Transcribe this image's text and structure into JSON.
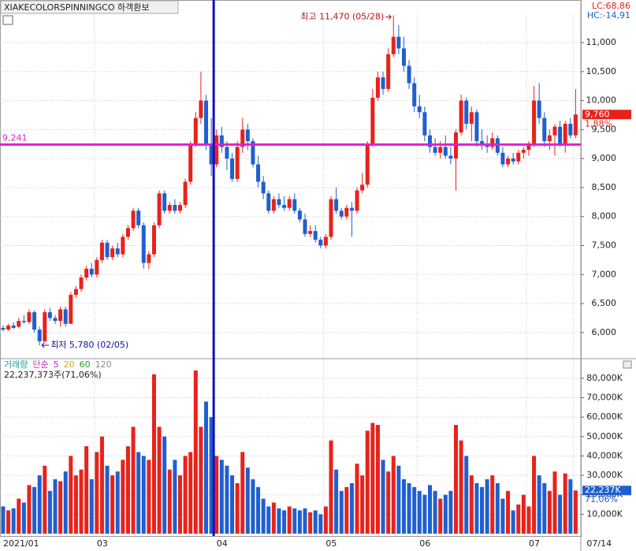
{
  "chart_data": {
    "type": "candlestick",
    "title": "XIAKECOLORSPINNINGCO 하객환보",
    "lc_label": "LC:68,86",
    "hc_label": "HC:-14,91",
    "color_up": "#e8221b",
    "color_down": "#1f5fd0",
    "xlim": [
      -0.6,
      111
    ],
    "xticks": [
      {
        "value": 0,
        "label": "2021/01"
      },
      {
        "value": 18,
        "label": "03"
      },
      {
        "value": 41,
        "label": "04"
      },
      {
        "value": 62,
        "label": "05"
      },
      {
        "value": 80,
        "label": "06"
      },
      {
        "value": 101,
        "label": "07"
      },
      {
        "value": 110,
        "label": "07/14"
      }
    ],
    "ylim": [
      5590,
      11490
    ],
    "yticks": [
      {
        "value": 6000,
        "label": "6,000"
      },
      {
        "value": 6500,
        "label": "6,500"
      },
      {
        "value": 7000,
        "label": "7,000"
      },
      {
        "value": 7500,
        "label": "7,500"
      },
      {
        "value": 8000,
        "label": "8,000"
      },
      {
        "value": 8500,
        "label": "8,500"
      },
      {
        "value": 9000,
        "label": "9,000"
      },
      {
        "value": 9500,
        "label": "9,500"
      },
      {
        "value": 10000,
        "label": "10,000"
      },
      {
        "value": 10500,
        "label": "10,500"
      },
      {
        "value": 11000,
        "label": "11,000"
      }
    ],
    "reference_line": {
      "value": 9241,
      "label": "9,241",
      "color": "#e020d0"
    },
    "cursor_index": 40,
    "high_annotation": "최고 11,470 (05/28)",
    "low_annotation": "최저 5,780 (02/05)",
    "last_price_label": "9,760",
    "change_label": "1,88%",
    "candles": [
      [
        6080,
        6120,
        6020,
        6050
      ],
      [
        6050,
        6150,
        6030,
        6120
      ],
      [
        6120,
        6180,
        6060,
        6080
      ],
      [
        6100,
        6250,
        6080,
        6200
      ],
      [
        6200,
        6300,
        6150,
        6180
      ],
      [
        6180,
        6400,
        6150,
        6350
      ],
      [
        6350,
        6380,
        6000,
        6050
      ],
      [
        6050,
        6100,
        5780,
        5850
      ],
      [
        5850,
        6400,
        5820,
        6350
      ],
      [
        6350,
        6420,
        6200,
        6250
      ],
      [
        6250,
        6300,
        6150,
        6200
      ],
      [
        6200,
        6450,
        6100,
        6400
      ],
      [
        6400,
        6450,
        6100,
        6150
      ],
      [
        6150,
        6700,
        6150,
        6650
      ],
      [
        6650,
        6800,
        6600,
        6750
      ],
      [
        6750,
        7000,
        6700,
        6950
      ],
      [
        6950,
        7150,
        6900,
        7100
      ],
      [
        7100,
        7200,
        6950,
        7000
      ],
      [
        7000,
        7300,
        6950,
        7250
      ],
      [
        7250,
        7600,
        7200,
        7550
      ],
      [
        7550,
        7600,
        7250,
        7300
      ],
      [
        7300,
        7500,
        7250,
        7450
      ],
      [
        7450,
        7550,
        7300,
        7350
      ],
      [
        7350,
        7700,
        7300,
        7650
      ],
      [
        7650,
        7850,
        7600,
        7800
      ],
      [
        7800,
        8150,
        7750,
        8100
      ],
      [
        8100,
        8150,
        7800,
        7850
      ],
      [
        7850,
        7900,
        7100,
        7200
      ],
      [
        7200,
        7400,
        7100,
        7350
      ],
      [
        7350,
        7900,
        7300,
        7850
      ],
      [
        7850,
        8450,
        7800,
        8400
      ],
      [
        8400,
        8450,
        8050,
        8100
      ],
      [
        8100,
        8250,
        8050,
        8200
      ],
      [
        8200,
        8300,
        8050,
        8100
      ],
      [
        8100,
        8250,
        8050,
        8200
      ],
      [
        8200,
        8650,
        8150,
        8600
      ],
      [
        8600,
        9300,
        8550,
        9250
      ],
      [
        9250,
        9800,
        9200,
        9700
      ],
      [
        9700,
        10500,
        9600,
        10000
      ],
      [
        10000,
        10100,
        9150,
        9250
      ],
      [
        9250,
        9700,
        8700,
        8900
      ],
      [
        8900,
        9500,
        8850,
        9400
      ],
      [
        9400,
        9550,
        9100,
        9200
      ],
      [
        9200,
        9300,
        8800,
        9000
      ],
      [
        9000,
        9100,
        8600,
        8650
      ],
      [
        8650,
        9300,
        8600,
        9200
      ],
      [
        9200,
        9700,
        9100,
        9500
      ],
      [
        9500,
        9600,
        9150,
        9300
      ],
      [
        9300,
        9350,
        8850,
        8900
      ],
      [
        8900,
        9050,
        8500,
        8600
      ],
      [
        8600,
        8700,
        8300,
        8400
      ],
      [
        8400,
        8450,
        8050,
        8100
      ],
      [
        8100,
        8350,
        8050,
        8300
      ],
      [
        8300,
        8400,
        8150,
        8200
      ],
      [
        8200,
        8350,
        8100,
        8150
      ],
      [
        8150,
        8350,
        8100,
        8300
      ],
      [
        8300,
        8400,
        8050,
        8100
      ],
      [
        8100,
        8150,
        7900,
        7950
      ],
      [
        7950,
        8050,
        7650,
        7700
      ],
      [
        7700,
        7850,
        7650,
        7750
      ],
      [
        7750,
        7850,
        7550,
        7600
      ],
      [
        7600,
        7650,
        7450,
        7500
      ],
      [
        7500,
        7700,
        7450,
        7650
      ],
      [
        7650,
        8350,
        7600,
        8300
      ],
      [
        8300,
        8500,
        8050,
        8100
      ],
      [
        8100,
        8150,
        7950,
        8000
      ],
      [
        8000,
        8200,
        7950,
        8150
      ],
      [
        8150,
        8250,
        7650,
        8100
      ],
      [
        8100,
        8500,
        8050,
        8450
      ],
      [
        8450,
        8750,
        8400,
        8550
      ],
      [
        8550,
        9300,
        8500,
        9250
      ],
      [
        9250,
        10200,
        9200,
        10050
      ],
      [
        10050,
        10500,
        10000,
        10400
      ],
      [
        10400,
        10500,
        10100,
        10200
      ],
      [
        10200,
        10900,
        10150,
        10800
      ],
      [
        10800,
        11470,
        10750,
        11100
      ],
      [
        11100,
        11300,
        10800,
        10900
      ],
      [
        10900,
        11100,
        10500,
        10600
      ],
      [
        10600,
        10700,
        10200,
        10300
      ],
      [
        10300,
        10400,
        9800,
        9900
      ],
      [
        9900,
        10100,
        9700,
        9800
      ],
      [
        9800,
        9900,
        9300,
        9400
      ],
      [
        9400,
        9500,
        9100,
        9200
      ],
      [
        9200,
        9350,
        9050,
        9100
      ],
      [
        9100,
        9300,
        9000,
        9200
      ],
      [
        9200,
        9400,
        9000,
        9050
      ],
      [
        9050,
        9200,
        8900,
        9000
      ],
      [
        9000,
        9500,
        8450,
        9450
      ],
      [
        9450,
        10100,
        9400,
        10000
      ],
      [
        10000,
        10050,
        9500,
        9600
      ],
      [
        9600,
        9900,
        9300,
        9800
      ],
      [
        9800,
        9850,
        9200,
        9300
      ],
      [
        9300,
        9500,
        9150,
        9250
      ],
      [
        9250,
        9400,
        9100,
        9200
      ],
      [
        9200,
        9450,
        9150,
        9350
      ],
      [
        9350,
        9400,
        9050,
        9100
      ],
      [
        9100,
        9200,
        8850,
        8900
      ],
      [
        8900,
        9050,
        8850,
        9000
      ],
      [
        9000,
        9100,
        8900,
        8950
      ],
      [
        8950,
        9150,
        8900,
        9100
      ],
      [
        9100,
        9200,
        9000,
        9150
      ],
      [
        9150,
        9300,
        9050,
        9250
      ],
      [
        9250,
        10250,
        9200,
        10000
      ],
      [
        10000,
        10300,
        9600,
        9700
      ],
      [
        9700,
        9800,
        9200,
        9300
      ],
      [
        9300,
        9500,
        9150,
        9400
      ],
      [
        9400,
        9600,
        9050,
        9550
      ],
      [
        9550,
        9650,
        9200,
        9250
      ],
      [
        9250,
        9650,
        9100,
        9600
      ],
      [
        9600,
        9700,
        9350,
        9400
      ],
      [
        9400,
        10200,
        9350,
        9760
      ]
    ],
    "volume": {
      "legend": [
        {
          "text": "거래량",
          "color": "#1a9a9a"
        },
        {
          "text": "단순",
          "color": "#d020c0"
        },
        {
          "text": "5",
          "color": "#d020c0"
        },
        {
          "text": "20",
          "color": "#e0a000"
        },
        {
          "text": "60",
          "color": "#2a9a2a"
        },
        {
          "text": "120",
          "color": "#888888"
        }
      ],
      "total_label": "22,237,373주(71,06%)",
      "last_label": "22,237K",
      "ratio_label": "71,06%",
      "ylim": [
        0,
        84000
      ],
      "yticks": [
        {
          "value": 10000,
          "label": "10,000K"
        },
        {
          "value": 20000,
          "label": "20,000K"
        },
        {
          "value": 30000,
          "label": "30,000K"
        },
        {
          "value": 40000,
          "label": "40,000K"
        },
        {
          "value": 50000,
          "label": "50,000K"
        },
        {
          "value": 60000,
          "label": "60,000K"
        },
        {
          "value": 70000,
          "label": "70,000K"
        },
        {
          "value": 80000,
          "label": "80,000K"
        }
      ],
      "values": [
        14000,
        12000,
        13000,
        18000,
        16000,
        25000,
        24000,
        30000,
        35000,
        22000,
        28000,
        27000,
        32000,
        40000,
        30000,
        33000,
        45000,
        28000,
        42000,
        50000,
        35000,
        30000,
        32000,
        38000,
        45000,
        55000,
        42000,
        40000,
        38000,
        82000,
        55000,
        50000,
        33000,
        38000,
        30000,
        40000,
        42000,
        84000,
        55000,
        68000,
        60000,
        40000,
        38000,
        35000,
        30000,
        26000,
        42000,
        34000,
        28000,
        24000,
        18000,
        14000,
        16000,
        13000,
        12000,
        14000,
        13000,
        12000,
        13000,
        11000,
        12000,
        10000,
        14000,
        48000,
        33000,
        22000,
        24000,
        26000,
        36000,
        30000,
        53000,
        57000,
        56000,
        38000,
        32000,
        40000,
        35000,
        28000,
        26000,
        24000,
        22000,
        20000,
        25000,
        22000,
        18000,
        20000,
        22000,
        56000,
        48000,
        40000,
        30000,
        26000,
        24000,
        28000,
        30000,
        26000,
        18000,
        22000,
        12000,
        15000,
        20000,
        14000,
        40000,
        30000,
        26000,
        22000,
        32000,
        20000,
        31000,
        28000,
        22237
      ]
    }
  }
}
